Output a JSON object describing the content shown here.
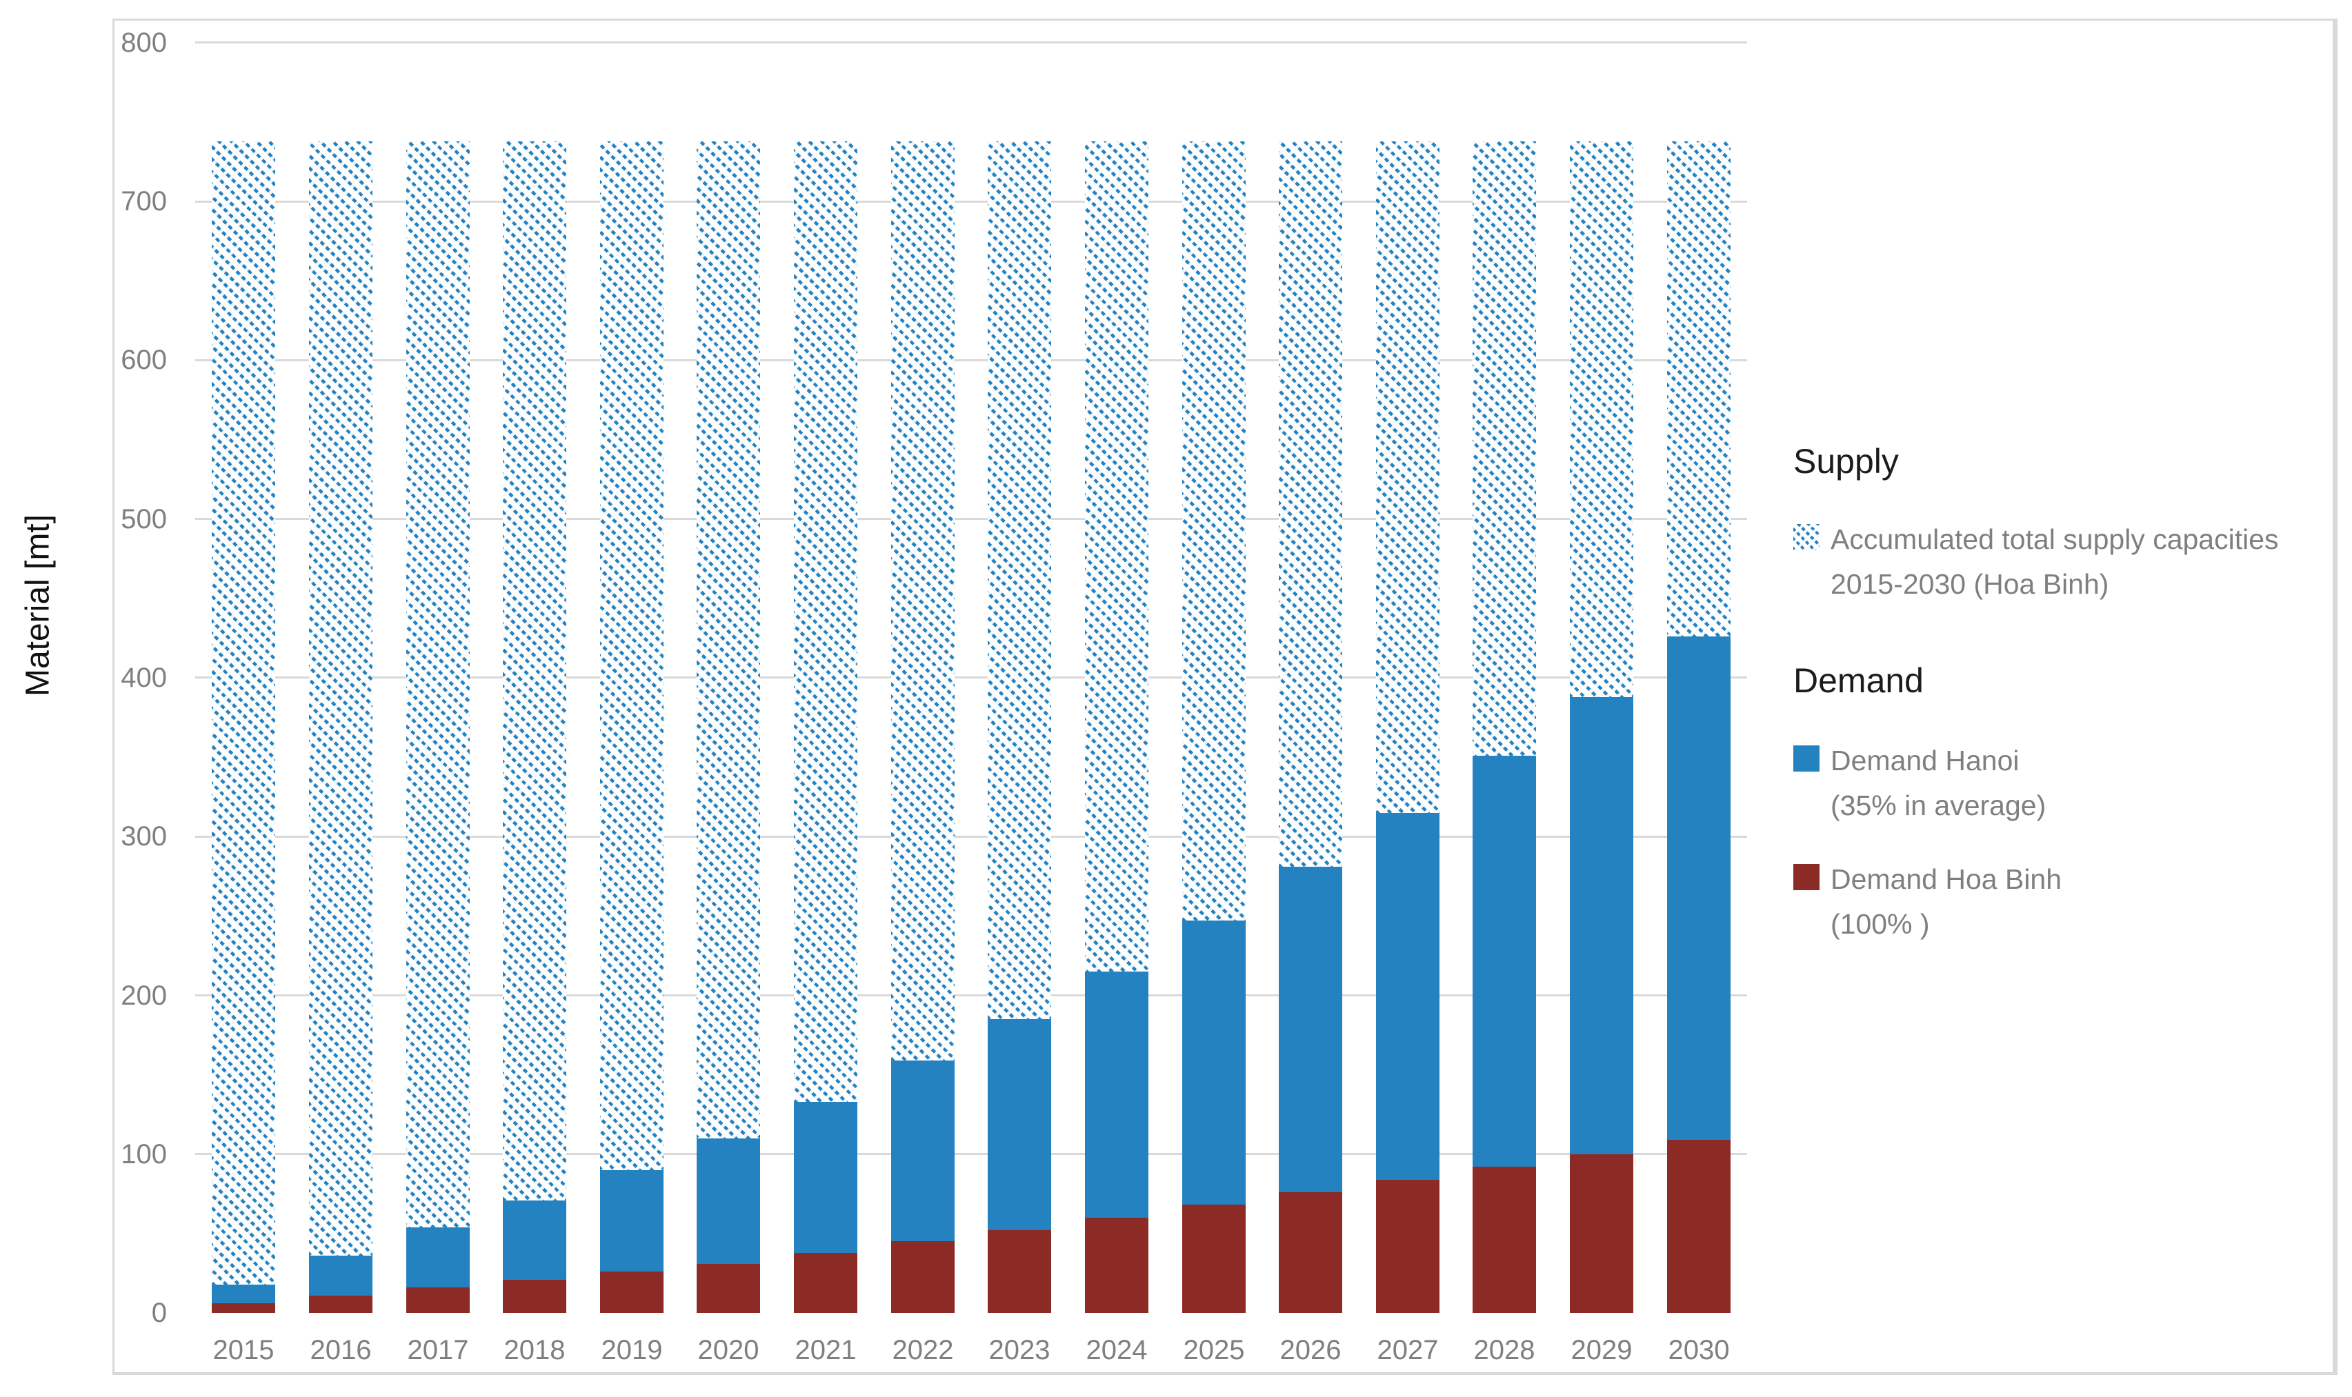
{
  "colors": {
    "demand_hanoi_blue": "#2582c0",
    "demand_hoa_binh_red": "#8c2a25",
    "gridline": "#d9d9d9",
    "frame_border": "#d9d9d9",
    "axis_text": "#7f7f7f",
    "header_text": "#1c1c1c"
  },
  "chart_data": {
    "type": "bar",
    "stacked": true,
    "title": "",
    "xlabel": "",
    "ylabel": "Material [mt]",
    "ylim": [
      0,
      800
    ],
    "ytick_step": 100,
    "yticks": [
      0,
      100,
      200,
      300,
      400,
      500,
      600,
      700,
      800
    ],
    "grid": true,
    "legend_position": "right",
    "categories": [
      "2015",
      "2016",
      "2017",
      "2018",
      "2019",
      "2020",
      "2021",
      "2022",
      "2023",
      "2024",
      "2025",
      "2026",
      "2027",
      "2028",
      "2029",
      "2030"
    ],
    "series": [
      {
        "name": "Demand Hoa Binh (100% )",
        "role": "demand-hoa-binh",
        "color": "#8c2a25",
        "values": [
          6,
          11,
          16,
          21,
          26,
          31,
          38,
          45,
          52,
          60,
          68,
          76,
          84,
          92,
          100,
          109
        ]
      },
      {
        "name": "Demand Hanoi (35% in average)",
        "role": "demand-hanoi",
        "color": "#2582c0",
        "values": [
          12,
          25,
          38,
          50,
          64,
          79,
          95,
          114,
          133,
          155,
          179,
          205,
          231,
          259,
          288,
          317
        ]
      },
      {
        "name": "Accumulated total supply capacities 2015-2030 (Hoa Binh)",
        "role": "supply-capacity",
        "pattern": "diagonal-hatch",
        "color": "#2582c0",
        "stack_to": 738
      }
    ]
  },
  "legend": {
    "supply_header": "Supply",
    "supply_item_line1": "Accumulated total supply capacities",
    "supply_item_line2": "2015-2030 (Hoa Binh)",
    "demand_header": "Demand",
    "hanoi_item_line1": "Demand Hanoi",
    "hanoi_item_line2": "(35% in average)",
    "hoa_binh_item_line1": "Demand Hoa Binh",
    "hoa_binh_item_line2": "(100% )"
  }
}
